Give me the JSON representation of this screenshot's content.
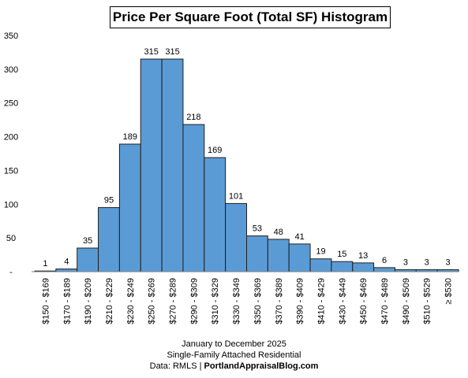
{
  "chart_data": {
    "type": "bar",
    "title": "Price Per Square Foot (Total SF) Histogram",
    "categories": [
      "$150 - $169",
      "$170 - $189",
      "$190 - $209",
      "$210 - $229",
      "$230 - $249",
      "$250 - $269",
      "$270 - $289",
      "$290 - $309",
      "$310 - $329",
      "$330 - $349",
      "$350 - $369",
      "$370 - $389",
      "$390 - $409",
      "$410 - $429",
      "$430 - $449",
      "$450 - $469",
      "$470 - $489",
      "$490 - $509",
      "$510 - $529",
      "≥ $530"
    ],
    "values": [
      1,
      4,
      35,
      95,
      189,
      315,
      315,
      218,
      169,
      101,
      53,
      48,
      41,
      19,
      15,
      13,
      6,
      3,
      3,
      3
    ],
    "ylim": [
      0,
      350
    ],
    "yticks": [
      0,
      50,
      100,
      150,
      200,
      250,
      300,
      350
    ],
    "ytick_labels": [
      "-",
      "50",
      "100",
      "150",
      "200",
      "250",
      "300",
      "350"
    ],
    "grid": false,
    "bar_color": "#5b9bd5",
    "bar_edge_color": "#1f1f1f"
  },
  "footer": {
    "line1": "January to December 2025",
    "line2": "Single-Family Attached Residential",
    "line3_prefix": "Data: RMLS | ",
    "line3_bold": "PortlandAppraisalBlog.com"
  }
}
